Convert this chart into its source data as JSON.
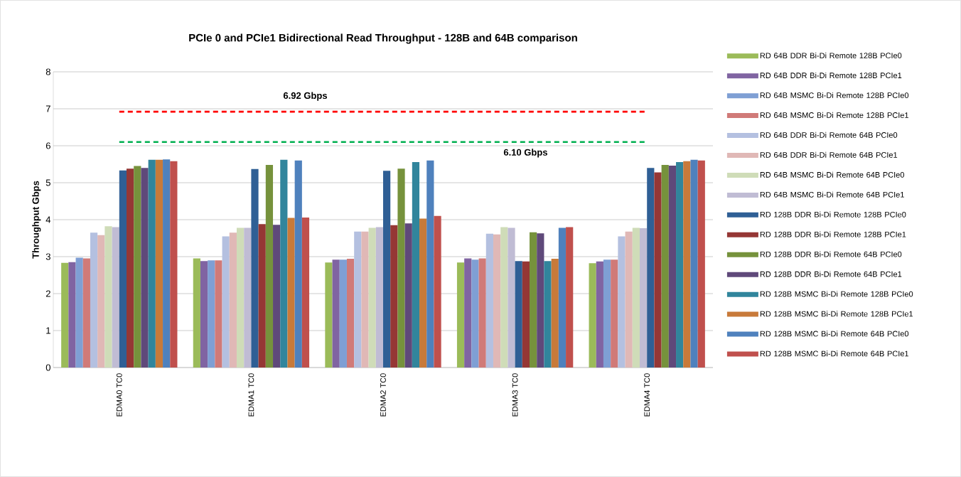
{
  "chart_data": {
    "type": "bar",
    "title": "PCIe 0 and PCIe1 Bidirectional Read Throughput - 128B and 64B comparison",
    "ylabel": "Throughput Gbps",
    "categories": [
      "EDMA0 TC0",
      "EDMA1 TC0",
      "EDMA2 TC0",
      "EDMA3 TC0",
      "EDMA4 TC0"
    ],
    "series": [
      {
        "name": "RD 64B DDR Bi-Di Remote 128B PCIe0",
        "color": "#9bbb59",
        "values": [
          2.83,
          2.95,
          2.84,
          2.84,
          2.82
        ]
      },
      {
        "name": "RD 64B DDR Bi-Di Remote 128B PCIe1",
        "color": "#8064a2",
        "values": [
          2.85,
          2.88,
          2.92,
          2.95,
          2.87
        ]
      },
      {
        "name": "RD 64B MSMC Bi-Di Remote 128B PCIe0",
        "color": "#7f9fd4",
        "values": [
          2.97,
          2.9,
          2.92,
          2.92,
          2.92
        ]
      },
      {
        "name": "RD 64B MSMC Bi-Di Remote 128B PCIe1",
        "color": "#d07a78",
        "values": [
          2.95,
          2.9,
          2.94,
          2.95,
          2.92
        ]
      },
      {
        "name": "RD 64B DDR Bi-Di Remote 64B PCIe0",
        "color": "#b4c0e0",
        "values": [
          3.65,
          3.55,
          3.68,
          3.62,
          3.55
        ]
      },
      {
        "name": "RD 64B DDR Bi-Di Remote 64B PCIe1",
        "color": "#e0b8b6",
        "values": [
          3.58,
          3.65,
          3.68,
          3.6,
          3.68
        ]
      },
      {
        "name": "RD 64B MSMC Bi-Di Remote 64B PCIe0",
        "color": "#cfdcb8",
        "values": [
          3.82,
          3.78,
          3.78,
          3.8,
          3.78
        ]
      },
      {
        "name": "RD 64B MSMC Bi-Di Remote 64B PCIe1",
        "color": "#c0bcd4",
        "values": [
          3.8,
          3.78,
          3.8,
          3.78,
          3.77
        ]
      },
      {
        "name": "RD 128B DDR Bi-Di Remote 128B PCIe0",
        "color": "#2f5f95",
        "values": [
          5.33,
          5.37,
          5.32,
          2.88,
          5.4
        ]
      },
      {
        "name": "RD 128B DDR Bi-Di Remote 128B PCIe1",
        "color": "#953735",
        "values": [
          5.38,
          3.88,
          3.85,
          2.87,
          5.28
        ]
      },
      {
        "name": "RD 128B DDR Bi-Di Remote 64B PCIe0",
        "color": "#76923c",
        "values": [
          5.45,
          5.48,
          5.38,
          3.66,
          5.48
        ]
      },
      {
        "name": "RD 128B DDR Bi-Di Remote 64B PCIe1",
        "color": "#5f497a",
        "values": [
          5.4,
          3.86,
          3.9,
          3.63,
          5.46
        ]
      },
      {
        "name": "RD 128B MSMC Bi-Di Remote 128B PCIe0",
        "color": "#31859c",
        "values": [
          5.62,
          5.62,
          5.56,
          2.88,
          5.56
        ]
      },
      {
        "name": "RD 128B MSMC Bi-Di Remote 128B PCIe1",
        "color": "#c87a3a",
        "values": [
          5.62,
          4.05,
          4.03,
          2.94,
          5.58
        ]
      },
      {
        "name": "RD 128B MSMC Bi-Di Remote 64B PCIe0",
        "color": "#4f81bd",
        "values": [
          5.63,
          5.6,
          5.6,
          3.78,
          5.62
        ]
      },
      {
        "name": "RD 128B MSMC Bi-Di Remote 64B PCIe1",
        "color": "#c0504d",
        "values": [
          5.58,
          4.06,
          4.1,
          3.8,
          5.6
        ]
      }
    ],
    "ylim": [
      0,
      8
    ],
    "yticks": [
      0,
      1,
      2,
      3,
      4,
      5,
      6,
      7,
      8
    ],
    "grid": "y",
    "legend": "right",
    "ref_lines": [
      {
        "axis": "y",
        "value": 6.92,
        "label": "6.92 Gbps",
        "color": "#ff0000",
        "line_style": "dashed"
      },
      {
        "axis": "y",
        "value": 6.1,
        "label": "6.10 Gbps",
        "color": "#00b050",
        "line_style": "dashed"
      }
    ]
  }
}
